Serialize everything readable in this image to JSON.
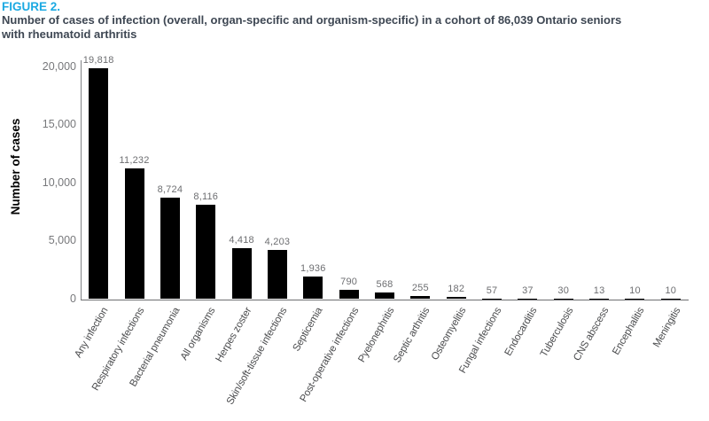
{
  "figure": {
    "label": "FIGURE 2.",
    "title_lines": [
      "Number of cases of infection (overall, organ-specific and organism-specific) in a cohort of 86,039 Ontario seniors",
      "with rheumatoid arthritis"
    ]
  },
  "chart_data": {
    "type": "bar",
    "title": "Number of cases of infection (overall, organ-specific and organism-specific) in a cohort of 86,039 Ontario seniors with rheumatoid arthritis",
    "xlabel": "",
    "ylabel": "Number of cases",
    "ylim": [
      0,
      20000
    ],
    "yticks": [
      0,
      5000,
      10000,
      15000,
      20000
    ],
    "ytick_labels": [
      "0",
      "5,000",
      "10,000",
      "15,000",
      "20,000"
    ],
    "grid": false,
    "legend": "none",
    "categories": [
      "Any infection",
      "Respiratory infections",
      "Bacterial pneumonia",
      "All organisms",
      "Herpes zoster",
      "Skin/soft-tissue infections",
      "Septicemia",
      "Post-operative infections",
      "Pyelonephritis",
      "Septic arthritis",
      "Osteomyelitis",
      "Fungal infections",
      "Endocarditis",
      "Tuberculosis",
      "CNS abscess",
      "Encephalitis",
      "Meningitis"
    ],
    "values": [
      19818,
      11232,
      8724,
      8116,
      4418,
      4203,
      1936,
      790,
      568,
      255,
      182,
      57,
      37,
      30,
      13,
      10,
      10
    ],
    "value_labels": [
      "19,818",
      "11,232",
      "8,724",
      "8,116",
      "4,418",
      "4,203",
      "1,936",
      "790",
      "568",
      "255",
      "182",
      "57",
      "37",
      "30",
      "13",
      "10",
      "10"
    ]
  },
  "colors": {
    "figure_label": "#1BA9E2",
    "title_text": "#3E4753",
    "bar": "#000000",
    "y_axis_line": "#808285",
    "x_axis_line": "#6D6E71",
    "tick_text": "#77787B",
    "value_text": "#6D6E71",
    "category_text": "#4A4B4D"
  }
}
